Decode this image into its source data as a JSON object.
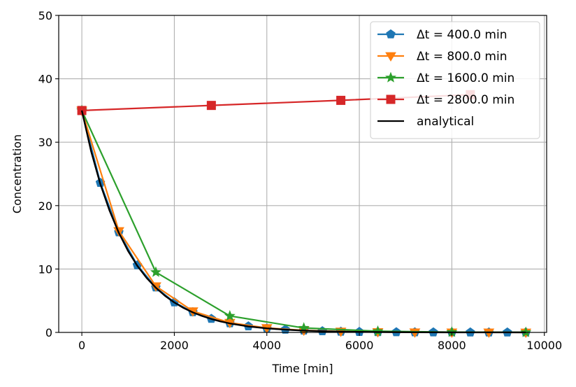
{
  "chart_data": {
    "type": "line",
    "xlabel": "Time [min]",
    "ylabel": "Concentration",
    "xlim": [
      -500,
      10050
    ],
    "ylim": [
      0,
      50
    ],
    "xticks": [
      "0",
      "2000",
      "4000",
      "6000",
      "8000",
      "10000"
    ],
    "yticks": [
      "0",
      "10",
      "20",
      "30",
      "40",
      "50"
    ],
    "grid": true,
    "legend_position": "top-right",
    "series": [
      {
        "name": "Δt = 400.0 min",
        "color": "#1f77b4",
        "marker": "pentagon",
        "x": [
          0,
          400,
          800,
          1200,
          1600,
          2000,
          2400,
          2800,
          3200,
          3600,
          4000,
          4400,
          4800,
          5200,
          5600,
          6000,
          6400,
          6800,
          7200,
          7600,
          8000,
          8400,
          8800,
          9200,
          9600
        ],
        "y": [
          35,
          23.6,
          15.8,
          10.6,
          7.1,
          4.75,
          3.2,
          2.15,
          1.45,
          0.97,
          0.65,
          0.44,
          0.3,
          0.2,
          0.13,
          0.09,
          0.06,
          0.04,
          0.027,
          0.018,
          0.012,
          0.008,
          0.005,
          0.004,
          0.003
        ]
      },
      {
        "name": "Δt = 800.0 min",
        "color": "#ff7f0e",
        "marker": "triangle-down",
        "x": [
          0,
          800,
          1600,
          2400,
          3200,
          4000,
          4800,
          5600,
          6400,
          7200,
          8000,
          8800,
          9600
        ],
        "y": [
          35,
          16.0,
          7.3,
          3.35,
          1.53,
          0.7,
          0.32,
          0.15,
          0.07,
          0.03,
          0.014,
          0.006,
          0.003
        ]
      },
      {
        "name": "Δt = 1600.0 min",
        "color": "#2ca02c",
        "marker": "star",
        "x": [
          0,
          1600,
          3200,
          4800,
          6400,
          8000,
          9600
        ],
        "y": [
          35,
          9.5,
          2.6,
          0.7,
          0.19,
          0.05,
          0.014
        ]
      },
      {
        "name": "Δt = 2800.0 min",
        "color": "#d62728",
        "marker": "square",
        "x": [
          0,
          2800,
          5600,
          8400
        ],
        "y": [
          35,
          35.8,
          36.6,
          37.5
        ]
      },
      {
        "name": "analytical",
        "color": "#000000",
        "marker": "none",
        "x": [
          0,
          200,
          400,
          600,
          800,
          1000,
          1200,
          1400,
          1600,
          1800,
          2000,
          2200,
          2400,
          2600,
          2800,
          3000,
          3200,
          3600,
          4000,
          4400,
          4800,
          5200,
          5600,
          6000,
          6400,
          7200,
          8000,
          8800,
          9600
        ],
        "y": [
          35,
          28.6,
          23.4,
          19.2,
          15.7,
          12.85,
          10.5,
          8.6,
          7.05,
          5.77,
          4.72,
          3.86,
          3.16,
          2.59,
          2.12,
          1.73,
          1.42,
          0.95,
          0.64,
          0.43,
          0.28,
          0.19,
          0.13,
          0.085,
          0.057,
          0.025,
          0.011,
          0.005,
          0.002
        ]
      }
    ]
  }
}
